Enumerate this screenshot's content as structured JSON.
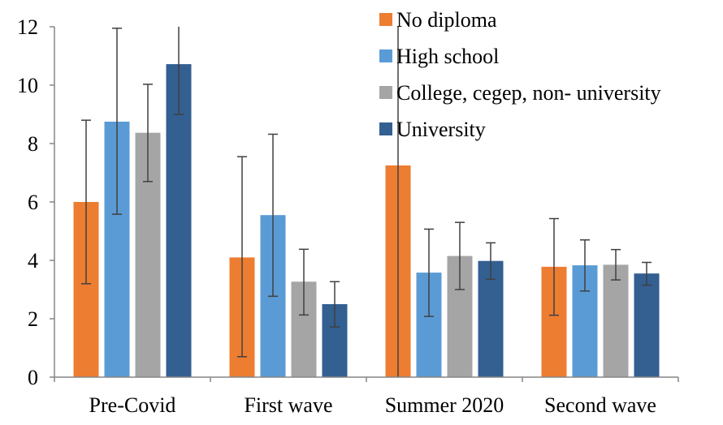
{
  "chart_data": {
    "type": "bar",
    "title": "",
    "xlabel": "",
    "ylabel": "",
    "ylim": [
      0,
      12
    ],
    "yticks": [
      0,
      2,
      4,
      6,
      8,
      10,
      12
    ],
    "grid": false,
    "legend_position": "top-right",
    "categories": [
      "Pre-Covid",
      "First wave",
      "Summer 2020",
      "Second wave"
    ],
    "series": [
      {
        "name": "No diploma",
        "color": "#ED7D31",
        "values": [
          6.0,
          4.1,
          7.25,
          3.78
        ],
        "error_low": [
          3.2,
          0.7,
          0.0,
          2.12
        ],
        "error_high": [
          8.8,
          7.55,
          12.0,
          5.43
        ]
      },
      {
        "name": "High school",
        "color": "#5B9BD5",
        "values": [
          8.75,
          5.55,
          3.58,
          3.83
        ],
        "error_low": [
          5.58,
          2.77,
          2.08,
          2.95
        ],
        "error_high": [
          11.95,
          8.32,
          5.07,
          4.7
        ]
      },
      {
        "name": "College, cegep, non- university",
        "color": "#A5A5A5",
        "values": [
          8.37,
          3.27,
          4.15,
          3.85
        ],
        "error_low": [
          6.7,
          2.13,
          3.0,
          3.33
        ],
        "error_high": [
          10.03,
          4.38,
          5.3,
          4.37
        ]
      },
      {
        "name": "University",
        "color": "#335F91",
        "values": [
          10.72,
          2.5,
          3.98,
          3.55
        ],
        "error_low": [
          9.0,
          1.72,
          3.35,
          3.15
        ],
        "error_high": [
          12.0,
          3.27,
          4.6,
          3.93
        ]
      }
    ]
  }
}
